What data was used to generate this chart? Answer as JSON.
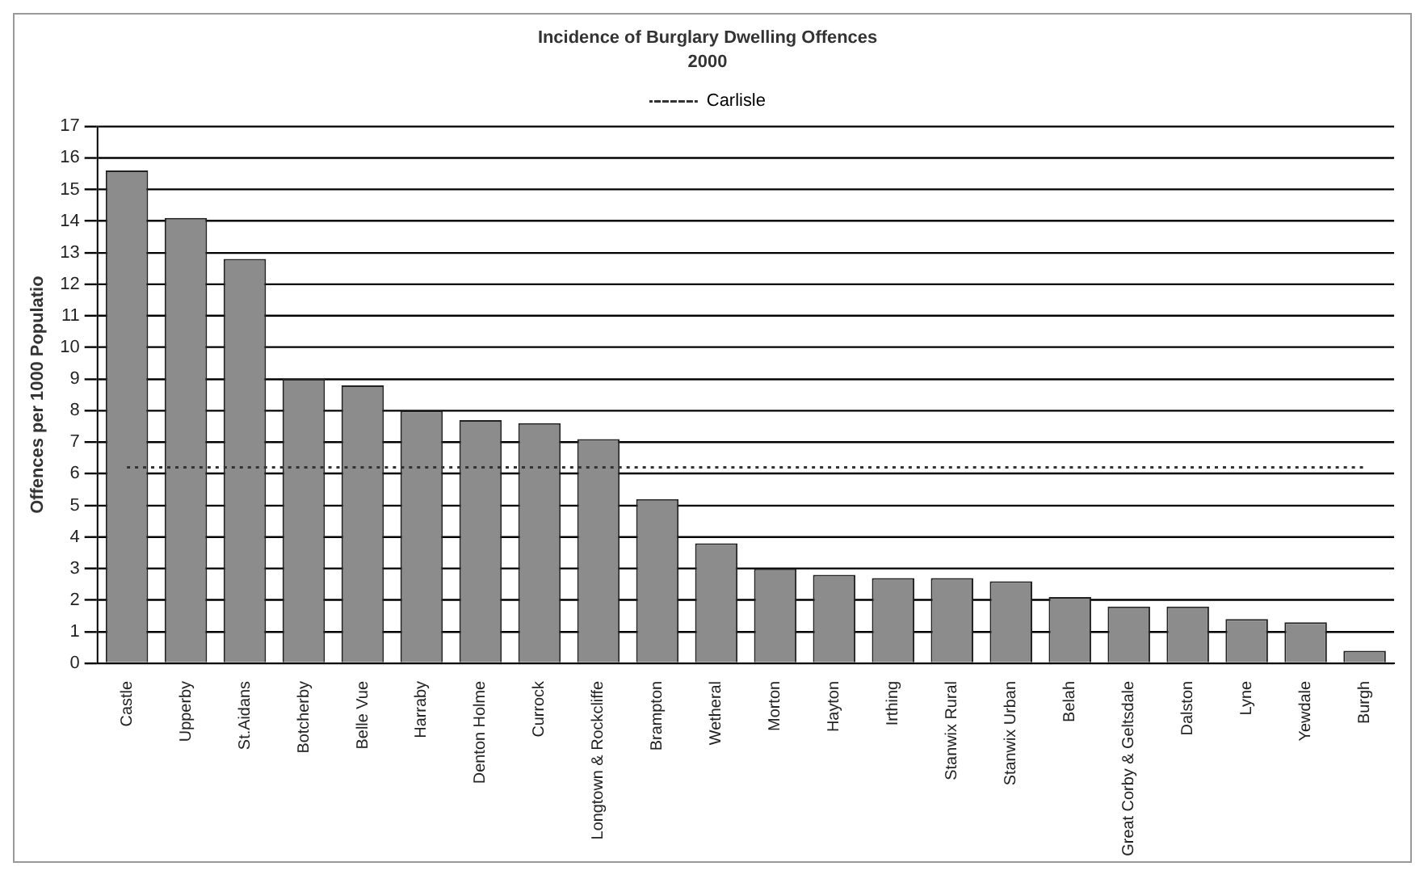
{
  "chart_data": {
    "type": "bar",
    "title": "Incidence of Burglary Dwelling Offences",
    "subtitle": "2000",
    "ylabel": "Offences per 1000 Populatio",
    "categories": [
      "Castle",
      "Upperby",
      "St.Aidans",
      "Botcherby",
      "Belle Vue",
      "Harraby",
      "Denton Holme",
      "Currock",
      "Longtown & Rockcliffe",
      "Brampton",
      "Wetheral",
      "Morton",
      "Hayton",
      "Irthing",
      "Stanwix Rural",
      "Stanwix Urban",
      "Belah",
      "Great Corby & Geltsdale",
      "Dalston",
      "Lyne",
      "Yewdale",
      "Burgh"
    ],
    "series": [
      {
        "color": "#8c8c8c",
        "values": [
          15.6,
          14.1,
          12.8,
          9.0,
          8.8,
          8.0,
          7.7,
          7.6,
          7.1,
          5.2,
          3.8,
          3.0,
          2.8,
          2.7,
          2.7,
          2.6,
          2.1,
          1.8,
          1.8,
          1.4,
          1.3,
          0.4
        ]
      },
      {
        "type": "line",
        "name": "Carlisle",
        "color": "#333333",
        "line_style": "dotted",
        "marker": "none",
        "values": [
          6.2,
          6.2,
          6.2,
          6.2,
          6.2,
          6.2,
          6.2,
          6.2,
          6.2,
          6.2,
          6.2,
          6.2,
          6.2,
          6.2,
          6.2,
          6.2,
          6.2,
          6.2,
          6.2,
          6.2,
          6.2,
          6.2
        ]
      }
    ],
    "ylim": [
      0,
      17
    ],
    "yticks": [
      0,
      1,
      2,
      3,
      4,
      5,
      6,
      7,
      8,
      9,
      10,
      11,
      12,
      13,
      14,
      15,
      16,
      17
    ],
    "grid": "y",
    "legend": "top"
  }
}
